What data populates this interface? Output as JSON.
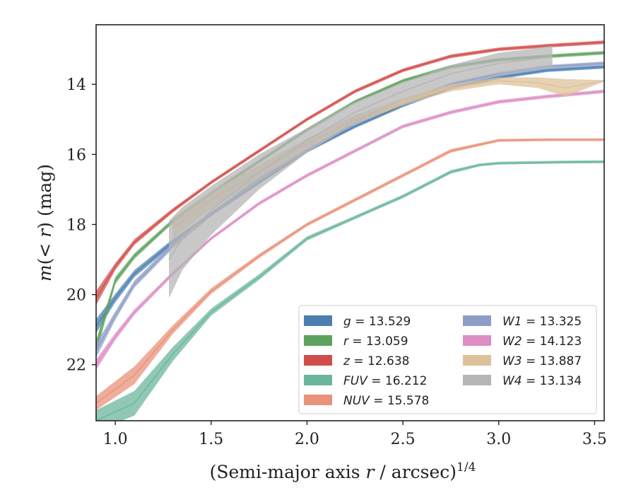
{
  "chart_data": {
    "type": "line",
    "xlabel": "(Semi-major axis r / arcsec)",
    "xlabel_var": "r",
    "xlabel_exp": "1/4",
    "ylabel": "m(< r) (mag)",
    "xlim": [
      0.9,
      3.55
    ],
    "ylim": [
      23.6,
      12.3
    ],
    "y_inverted": true,
    "grid": false,
    "legend_position": "lower-right",
    "x_ticks": [
      1.0,
      1.5,
      2.0,
      2.5,
      3.0,
      3.5
    ],
    "x_tick_labels": [
      "1.0",
      "1.5",
      "2.0",
      "2.5",
      "3.0",
      "3.5"
    ],
    "y_ticks": [
      14,
      16,
      18,
      20,
      22
    ],
    "y_tick_labels": [
      "14",
      "16",
      "18",
      "20",
      "22"
    ],
    "series": [
      {
        "name": "g",
        "label": "g = 13.529",
        "color": "#4c7fb0",
        "x": [
          0.9,
          1.0,
          1.1,
          1.3,
          1.5,
          1.75,
          2.0,
          2.25,
          2.5,
          2.75,
          3.0,
          3.25,
          3.55
        ],
        "y": [
          20.9,
          20.1,
          19.4,
          18.5,
          17.7,
          16.8,
          15.9,
          15.2,
          14.6,
          14.1,
          13.8,
          13.6,
          13.5
        ],
        "band": [
          0.2,
          0.12,
          0.1,
          0.08,
          0.06,
          0.05,
          0.05,
          0.05,
          0.05,
          0.05,
          0.05,
          0.05,
          0.05
        ]
      },
      {
        "name": "r",
        "label": "r = 13.059",
        "color": "#5ea25e",
        "x": [
          0.9,
          1.0,
          1.1,
          1.3,
          1.5,
          1.75,
          2.0,
          2.25,
          2.5,
          2.75,
          3.0,
          3.25,
          3.55
        ],
        "y": [
          21.5,
          19.6,
          18.9,
          17.9,
          17.1,
          16.2,
          15.3,
          14.5,
          13.9,
          13.5,
          13.3,
          13.2,
          13.1
        ],
        "band": [
          0.2,
          0.1,
          0.08,
          0.06,
          0.05,
          0.05,
          0.05,
          0.05,
          0.05,
          0.05,
          0.05,
          0.05,
          0.05
        ]
      },
      {
        "name": "z",
        "label": "z = 12.638",
        "color": "#d24d4a",
        "x": [
          0.9,
          1.0,
          1.1,
          1.3,
          1.5,
          1.75,
          2.0,
          2.25,
          2.5,
          2.75,
          3.0,
          3.25,
          3.55
        ],
        "y": [
          20.1,
          19.2,
          18.5,
          17.6,
          16.8,
          15.9,
          15.0,
          14.2,
          13.6,
          13.2,
          13.0,
          12.9,
          12.8
        ],
        "band": [
          0.2,
          0.1,
          0.08,
          0.06,
          0.05,
          0.05,
          0.05,
          0.05,
          0.05,
          0.05,
          0.05,
          0.05,
          0.05
        ]
      },
      {
        "name": "FUV",
        "label": "FUV = 16.212",
        "color": "#6bb59c",
        "x": [
          0.9,
          1.1,
          1.3,
          1.5,
          1.75,
          2.0,
          2.25,
          2.5,
          2.75,
          2.9,
          3.0,
          3.33,
          3.55
        ],
        "y": [
          23.6,
          23.1,
          21.7,
          20.5,
          19.5,
          18.4,
          17.8,
          17.2,
          16.5,
          16.3,
          16.25,
          16.22,
          16.21
        ],
        "band": [
          0.3,
          0.35,
          0.2,
          0.1,
          0.08,
          0.06,
          0.05,
          0.05,
          0.05,
          0.04,
          0.04,
          0.04,
          0.04
        ]
      },
      {
        "name": "NUV",
        "label": "NUV = 15.578",
        "color": "#e9927a",
        "x": [
          0.9,
          1.1,
          1.3,
          1.5,
          1.75,
          2.0,
          2.25,
          2.5,
          2.75,
          3.0,
          3.25,
          3.55
        ],
        "y": [
          23.1,
          22.3,
          21.0,
          19.9,
          18.9,
          18.0,
          17.3,
          16.6,
          15.9,
          15.6,
          15.58,
          15.58
        ],
        "band": [
          0.2,
          0.25,
          0.12,
          0.08,
          0.06,
          0.05,
          0.05,
          0.05,
          0.05,
          0.04,
          0.04,
          0.04
        ]
      },
      {
        "name": "W1",
        "label": "W1 = 13.325",
        "color": "#8e9dc6",
        "x": [
          0.9,
          1.0,
          1.1,
          1.3,
          1.5,
          1.75,
          2.0,
          2.25,
          2.5,
          2.75,
          3.0,
          3.25,
          3.55
        ],
        "y": [
          21.6,
          20.6,
          19.7,
          18.6,
          17.7,
          16.7,
          15.9,
          15.1,
          14.5,
          14.0,
          13.7,
          13.5,
          13.4
        ],
        "band": [
          0.2,
          0.12,
          0.1,
          0.08,
          0.06,
          0.05,
          0.05,
          0.05,
          0.05,
          0.05,
          0.05,
          0.05,
          0.05
        ]
      },
      {
        "name": "W2",
        "label": "W2 = 14.123",
        "color": "#dc8ec5",
        "x": [
          0.9,
          1.0,
          1.1,
          1.3,
          1.5,
          1.75,
          2.0,
          2.25,
          2.5,
          2.75,
          3.0,
          3.25,
          3.55
        ],
        "y": [
          22.0,
          21.2,
          20.5,
          19.4,
          18.4,
          17.4,
          16.6,
          15.9,
          15.2,
          14.8,
          14.5,
          14.35,
          14.2
        ],
        "band": [
          0.15,
          0.1,
          0.08,
          0.06,
          0.05,
          0.05,
          0.05,
          0.05,
          0.05,
          0.05,
          0.05,
          0.05,
          0.05
        ]
      },
      {
        "name": "W3",
        "label": "W3 = 13.887",
        "color": "#dec19a",
        "x": [
          1.3,
          1.5,
          1.75,
          2.0,
          2.25,
          2.5,
          2.75,
          3.0,
          3.2,
          3.35,
          3.55
        ],
        "y": [
          18.1,
          17.3,
          16.5,
          15.7,
          15.0,
          14.5,
          14.1,
          13.9,
          13.95,
          14.1,
          13.9
        ],
        "band": [
          0.3,
          0.25,
          0.2,
          0.15,
          0.12,
          0.1,
          0.1,
          0.1,
          0.15,
          0.25,
          0.02
        ]
      },
      {
        "name": "W4",
        "label": "W4 = 13.134",
        "color": "#b5b5b5",
        "x": [
          1.28,
          1.35,
          1.5,
          1.75,
          2.0,
          2.25,
          2.5,
          2.75,
          3.0,
          3.15,
          3.28
        ],
        "y": [
          19.0,
          18.4,
          17.6,
          16.5,
          15.6,
          14.8,
          14.2,
          13.7,
          13.4,
          13.3,
          13.2
        ],
        "band": [
          1.1,
          0.9,
          0.7,
          0.5,
          0.35,
          0.3,
          0.25,
          0.25,
          0.3,
          0.3,
          0.3
        ]
      }
    ]
  },
  "legend": {
    "items": [
      {
        "name": "g",
        "value": "= 13.529",
        "color": "#4c7fb0"
      },
      {
        "name": "r",
        "value": "= 13.059",
        "color": "#5ea25e"
      },
      {
        "name": "z",
        "value": "= 12.638",
        "color": "#d24d4a"
      },
      {
        "name": "FUV",
        "value": "= 16.212",
        "color": "#6bb59c"
      },
      {
        "name": "NUV",
        "value": "= 15.578",
        "color": "#e9927a"
      },
      {
        "name": "W1",
        "value": "= 13.325",
        "color": "#8e9dc6"
      },
      {
        "name": "W2",
        "value": "= 14.123",
        "color": "#dc8ec5"
      },
      {
        "name": "W3",
        "value": "= 13.887",
        "color": "#dec19a"
      },
      {
        "name": "W4",
        "value": "= 13.134",
        "color": "#b5b5b5"
      }
    ]
  }
}
